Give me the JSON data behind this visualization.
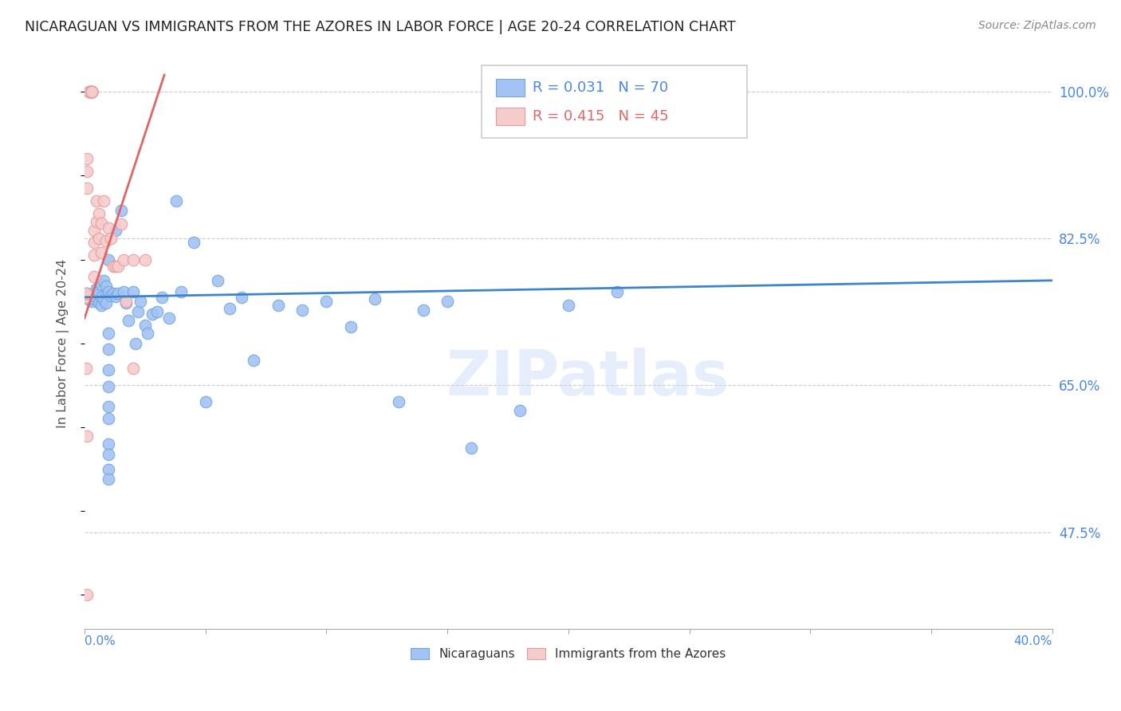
{
  "title": "NICARAGUAN VS IMMIGRANTS FROM THE AZORES IN LABOR FORCE | AGE 20-24 CORRELATION CHART",
  "source": "Source: ZipAtlas.com",
  "ylabel": "In Labor Force | Age 20-24",
  "x_lim": [
    0.0,
    0.4
  ],
  "y_lim": [
    0.36,
    1.04
  ],
  "blue_scatter_color": "#a4c2f4",
  "blue_edge_color": "#6fa8dc",
  "pink_scatter_color": "#f4cccc",
  "pink_edge_color": "#ea9999",
  "trend_blue": "#3d85c8",
  "trend_pink": "#e06666",
  "axis_color": "#4a86e8",
  "grid_color": "#cccccc",
  "watermark": "ZIPatlas",
  "watermark_color": "#c9daf8",
  "legend_r_blue": "0.031",
  "legend_n_blue": "70",
  "legend_r_pink": "0.415",
  "legend_n_pink": "45",
  "legend_label_blue": "Nicaraguans",
  "legend_label_pink": "Immigrants from the Azores",
  "blue_x": [
    0.001,
    0.001,
    0.002,
    0.002,
    0.003,
    0.003,
    0.004,
    0.004,
    0.005,
    0.005,
    0.006,
    0.006,
    0.007,
    0.007,
    0.007,
    0.008,
    0.008,
    0.009,
    0.009,
    0.01,
    0.01,
    0.011,
    0.012,
    0.013,
    0.013,
    0.014,
    0.015,
    0.016,
    0.017,
    0.018,
    0.02,
    0.021,
    0.022,
    0.023,
    0.025,
    0.026,
    0.028,
    0.03,
    0.032,
    0.035,
    0.038,
    0.04,
    0.045,
    0.05,
    0.055,
    0.06,
    0.065,
    0.07,
    0.08,
    0.09,
    0.1,
    0.11,
    0.12,
    0.13,
    0.14,
    0.15,
    0.16,
    0.18,
    0.2,
    0.22,
    0.01,
    0.01,
    0.01,
    0.01,
    0.01,
    0.01,
    0.01,
    0.01,
    0.01,
    0.01
  ],
  "blue_y": [
    0.755,
    0.76,
    0.758,
    0.752,
    0.758,
    0.75,
    0.76,
    0.753,
    0.765,
    0.755,
    0.762,
    0.748,
    0.77,
    0.755,
    0.745,
    0.775,
    0.752,
    0.768,
    0.748,
    0.762,
    0.8,
    0.757,
    0.76,
    0.835,
    0.756,
    0.76,
    0.858,
    0.762,
    0.748,
    0.727,
    0.762,
    0.7,
    0.738,
    0.75,
    0.722,
    0.712,
    0.735,
    0.738,
    0.755,
    0.73,
    0.87,
    0.762,
    0.82,
    0.63,
    0.775,
    0.742,
    0.755,
    0.68,
    0.745,
    0.74,
    0.75,
    0.72,
    0.753,
    0.63,
    0.74,
    0.75,
    0.575,
    0.62,
    0.745,
    0.762,
    0.712,
    0.693,
    0.668,
    0.648,
    0.625,
    0.61,
    0.58,
    0.568,
    0.55,
    0.538
  ],
  "pink_x": [
    0.0005,
    0.0005,
    0.001,
    0.001,
    0.001,
    0.002,
    0.002,
    0.002,
    0.002,
    0.003,
    0.003,
    0.003,
    0.003,
    0.003,
    0.003,
    0.003,
    0.003,
    0.003,
    0.003,
    0.004,
    0.004,
    0.004,
    0.004,
    0.005,
    0.005,
    0.006,
    0.006,
    0.007,
    0.007,
    0.008,
    0.009,
    0.01,
    0.011,
    0.012,
    0.013,
    0.014,
    0.015,
    0.016,
    0.017,
    0.02,
    0.0005,
    0.001,
    0.001,
    0.02,
    0.025
  ],
  "pink_y": [
    0.755,
    0.76,
    0.92,
    0.905,
    0.885,
    1.0,
    1.0,
    1.0,
    1.0,
    1.0,
    1.0,
    1.0,
    1.0,
    1.0,
    1.0,
    1.0,
    1.0,
    1.0,
    1.0,
    0.835,
    0.82,
    0.805,
    0.78,
    0.87,
    0.845,
    0.855,
    0.825,
    0.843,
    0.808,
    0.87,
    0.822,
    0.838,
    0.825,
    0.792,
    0.792,
    0.792,
    0.842,
    0.8,
    0.75,
    0.8,
    0.67,
    0.59,
    0.4,
    0.67,
    0.8
  ]
}
